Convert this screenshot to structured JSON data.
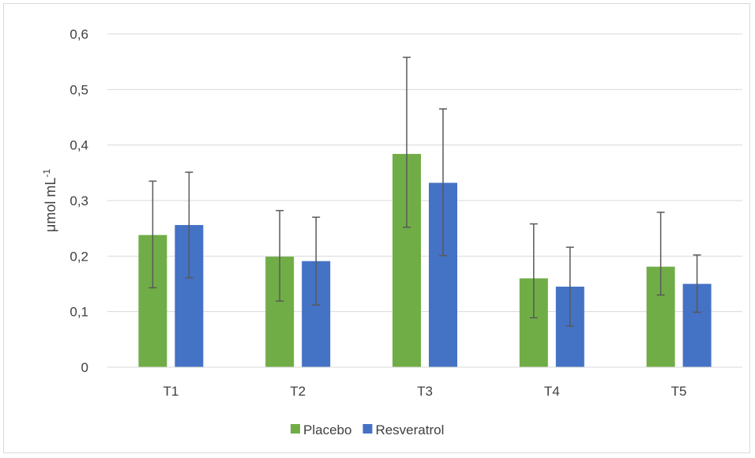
{
  "chart_data": {
    "type": "bar",
    "title": "",
    "xlabel": "",
    "ylabel": {
      "main": "μmol mL",
      "superscript": "-1"
    },
    "categories": [
      "T1",
      "T2",
      "T3",
      "T4",
      "T5"
    ],
    "ylim": [
      0,
      0.6
    ],
    "yticks": [
      0,
      0.1,
      0.2,
      0.3,
      0.4,
      0.5,
      0.6
    ],
    "ytick_labels": [
      "0",
      "0,1",
      "0,2",
      "0,3",
      "0,4",
      "0,5",
      "0,6"
    ],
    "grid": true,
    "legend_position": "bottom",
    "series": [
      {
        "name": "Placebo",
        "color": "#70ad47",
        "values": [
          0.238,
          0.199,
          0.384,
          0.16,
          0.181
        ],
        "error_low": [
          0.143,
          0.119,
          0.252,
          0.089,
          0.13
        ],
        "error_high": [
          0.335,
          0.282,
          0.558,
          0.258,
          0.279
        ]
      },
      {
        "name": "Resveratrol",
        "color": "#4472c4",
        "values": [
          0.256,
          0.191,
          0.332,
          0.145,
          0.15
        ],
        "error_low": [
          0.161,
          0.112,
          0.201,
          0.074,
          0.099
        ],
        "error_high": [
          0.351,
          0.27,
          0.465,
          0.216,
          0.202
        ]
      }
    ]
  }
}
